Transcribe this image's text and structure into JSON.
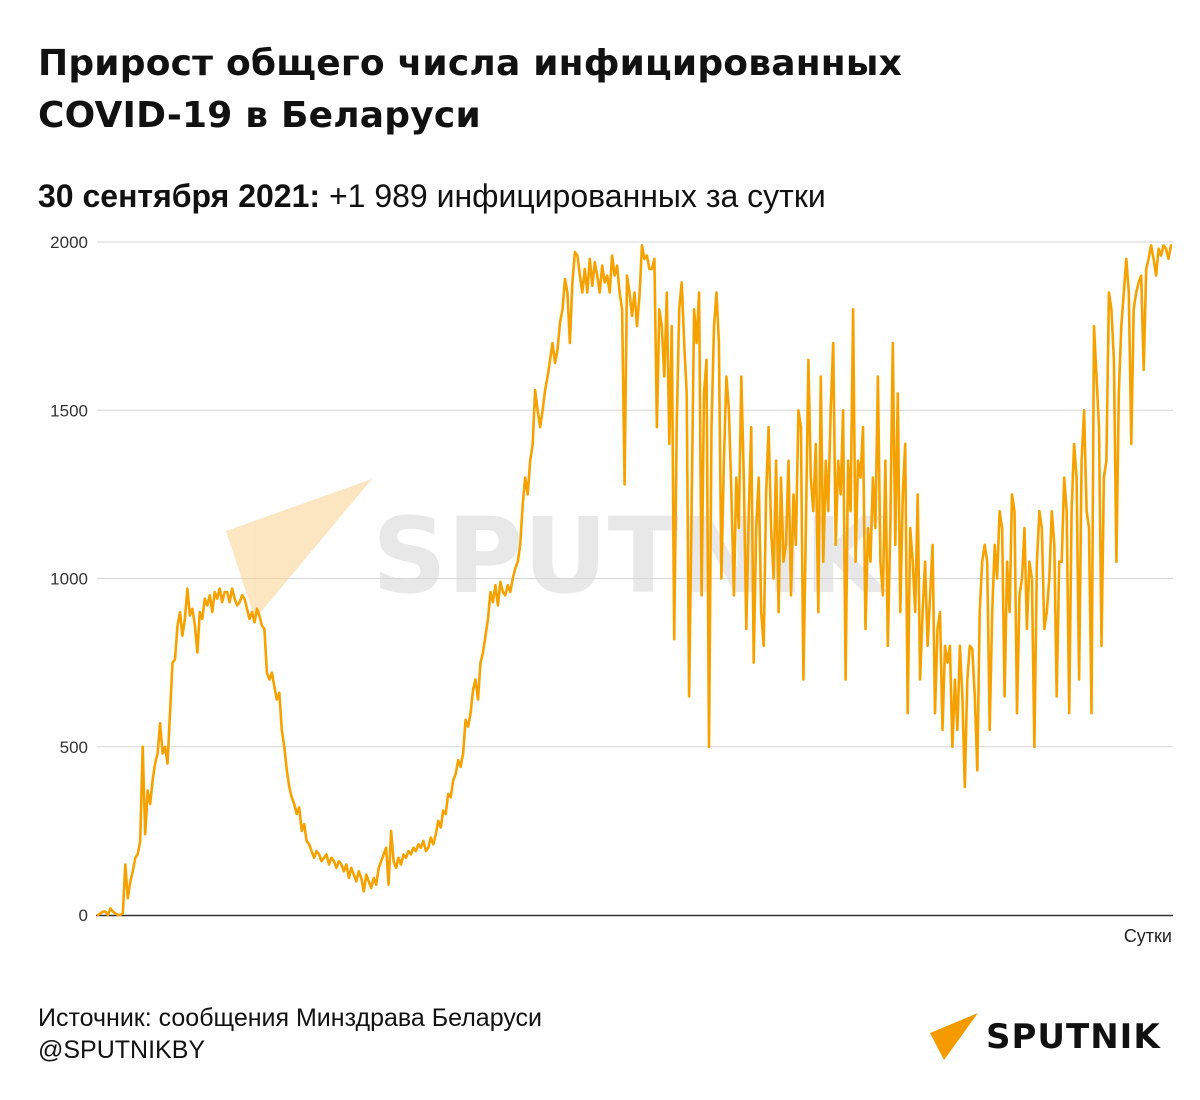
{
  "header": {
    "title_line1": "Прирост общего числа инфицированных",
    "title_line2": "COVID-19 в Беларуси",
    "subtitle_date": "30 сентября 2021:",
    "subtitle_text": " +1 989 инфицированных за сутки"
  },
  "footer": {
    "source": "Источник: сообщения Минздрава Беларуси",
    "handle": "@SPUTNIKBY"
  },
  "brand": {
    "logo_text": "SPUTNIK",
    "watermark_text": "SPUTNIK",
    "accent_color": "#f59b00",
    "line_color": "#f5a200"
  },
  "chart_data": {
    "type": "line",
    "xlabel": "Сутки",
    "ylabel": "",
    "ylim": [
      0,
      2000
    ],
    "yticks": [
      0,
      500,
      1000,
      1500,
      2000
    ],
    "grid": true,
    "series": [
      {
        "color": "#f5a200",
        "values": [
          0,
          5,
          10,
          10,
          0,
          20,
          10,
          5,
          0,
          0,
          5,
          150,
          50,
          100,
          130,
          170,
          180,
          220,
          500,
          240,
          370,
          330,
          400,
          450,
          480,
          570,
          480,
          500,
          450,
          600,
          750,
          760,
          860,
          900,
          830,
          880,
          970,
          890,
          910,
          860,
          780,
          900,
          880,
          940,
          920,
          950,
          900,
          960,
          940,
          970,
          930,
          960,
          960,
          930,
          970,
          940,
          920,
          930,
          950,
          940,
          910,
          880,
          900,
          870,
          910,
          890,
          860,
          850,
          720,
          700,
          720,
          680,
          640,
          660,
          550,
          500,
          430,
          380,
          350,
          330,
          300,
          320,
          250,
          270,
          220,
          210,
          190,
          170,
          190,
          180,
          160,
          170,
          180,
          150,
          170,
          160,
          140,
          160,
          150,
          130,
          150,
          110,
          140,
          120,
          100,
          130,
          110,
          70,
          120,
          100,
          80,
          110,
          90,
          140,
          160,
          180,
          200,
          90,
          250,
          160,
          140,
          170,
          150,
          180,
          170,
          190,
          180,
          200,
          190,
          210,
          200,
          220,
          190,
          200,
          230,
          210,
          240,
          280,
          260,
          310,
          300,
          360,
          350,
          400,
          420,
          460,
          440,
          480,
          580,
          560,
          600,
          670,
          700,
          640,
          750,
          780,
          830,
          880,
          960,
          930,
          980,
          920,
          990,
          960,
          950,
          980,
          960,
          1000,
          1030,
          1050,
          1100,
          1220,
          1300,
          1250,
          1350,
          1400,
          1560,
          1500,
          1450,
          1500,
          1560,
          1600,
          1650,
          1700,
          1640,
          1680,
          1760,
          1800,
          1890,
          1850,
          1700,
          1880,
          1970,
          1960,
          1900,
          1850,
          1920,
          1850,
          1950,
          1870,
          1940,
          1900,
          1850,
          1930,
          1880,
          1900,
          1850,
          1960,
          1900,
          1930,
          1850,
          1800,
          1280,
          1900,
          1850,
          1780,
          1850,
          1750,
          1840,
          1990,
          1950,
          1960,
          1920,
          1920,
          1950,
          1450,
          1800,
          1750,
          1600,
          1850,
          1400,
          1750,
          820,
          1450,
          1800,
          1880,
          1700,
          1550,
          650,
          1200,
          1800,
          1700,
          1850,
          950,
          1550,
          1650,
          500,
          1450,
          1750,
          1850,
          1700,
          1000,
          1350,
          1600,
          1500,
          1250,
          950,
          1300,
          1150,
          1600,
          1300,
          850,
          1200,
          1450,
          750,
          1150,
          1300,
          900,
          800,
          1250,
          1450,
          1150,
          1000,
          1350,
          900,
          1300,
          1050,
          1100,
          1350,
          950,
          1250,
          1100,
          1500,
          1450,
          700,
          1150,
          1650,
          1300,
          1200,
          1400,
          900,
          1600,
          1050,
          1350,
          1200,
          1500,
          1700,
          1100,
          1350,
          1250,
          1500,
          700,
          1350,
          1200,
          1800,
          1050,
          1350,
          1300,
          1450,
          850,
          1150,
          1050,
          1300,
          1150,
          1600,
          1050,
          950,
          1350,
          800,
          1150,
          1700,
          1100,
          1550,
          900,
          1250,
          1400,
          600,
          1150,
          1050,
          900,
          1250,
          700,
          900,
          1050,
          800,
          950,
          1100,
          600,
          850,
          900,
          550,
          800,
          750,
          800,
          500,
          700,
          550,
          800,
          650,
          380,
          700,
          800,
          790,
          650,
          430,
          900,
          1050,
          1100,
          1050,
          550,
          900,
          1100,
          1000,
          1200,
          1150,
          650,
          1050,
          900,
          1250,
          1200,
          600,
          950,
          1000,
          1150,
          850,
          1050,
          1000,
          500,
          1050,
          1200,
          1150,
          850,
          900,
          1000,
          1200,
          1100,
          650,
          1050,
          1050,
          1300,
          1200,
          600,
          1200,
          1400,
          1300,
          700,
          1350,
          1500,
          1200,
          1150,
          600,
          1750,
          1600,
          1450,
          800,
          1300,
          1350,
          1850,
          1800,
          1650,
          1050,
          1550,
          1750,
          1850,
          1950,
          1850,
          1400,
          1800,
          1850,
          1880,
          1900,
          1620,
          1920,
          1950,
          1990,
          1950,
          1900,
          1980,
          1960,
          1990,
          1980,
          1950,
          1990
        ]
      }
    ]
  }
}
